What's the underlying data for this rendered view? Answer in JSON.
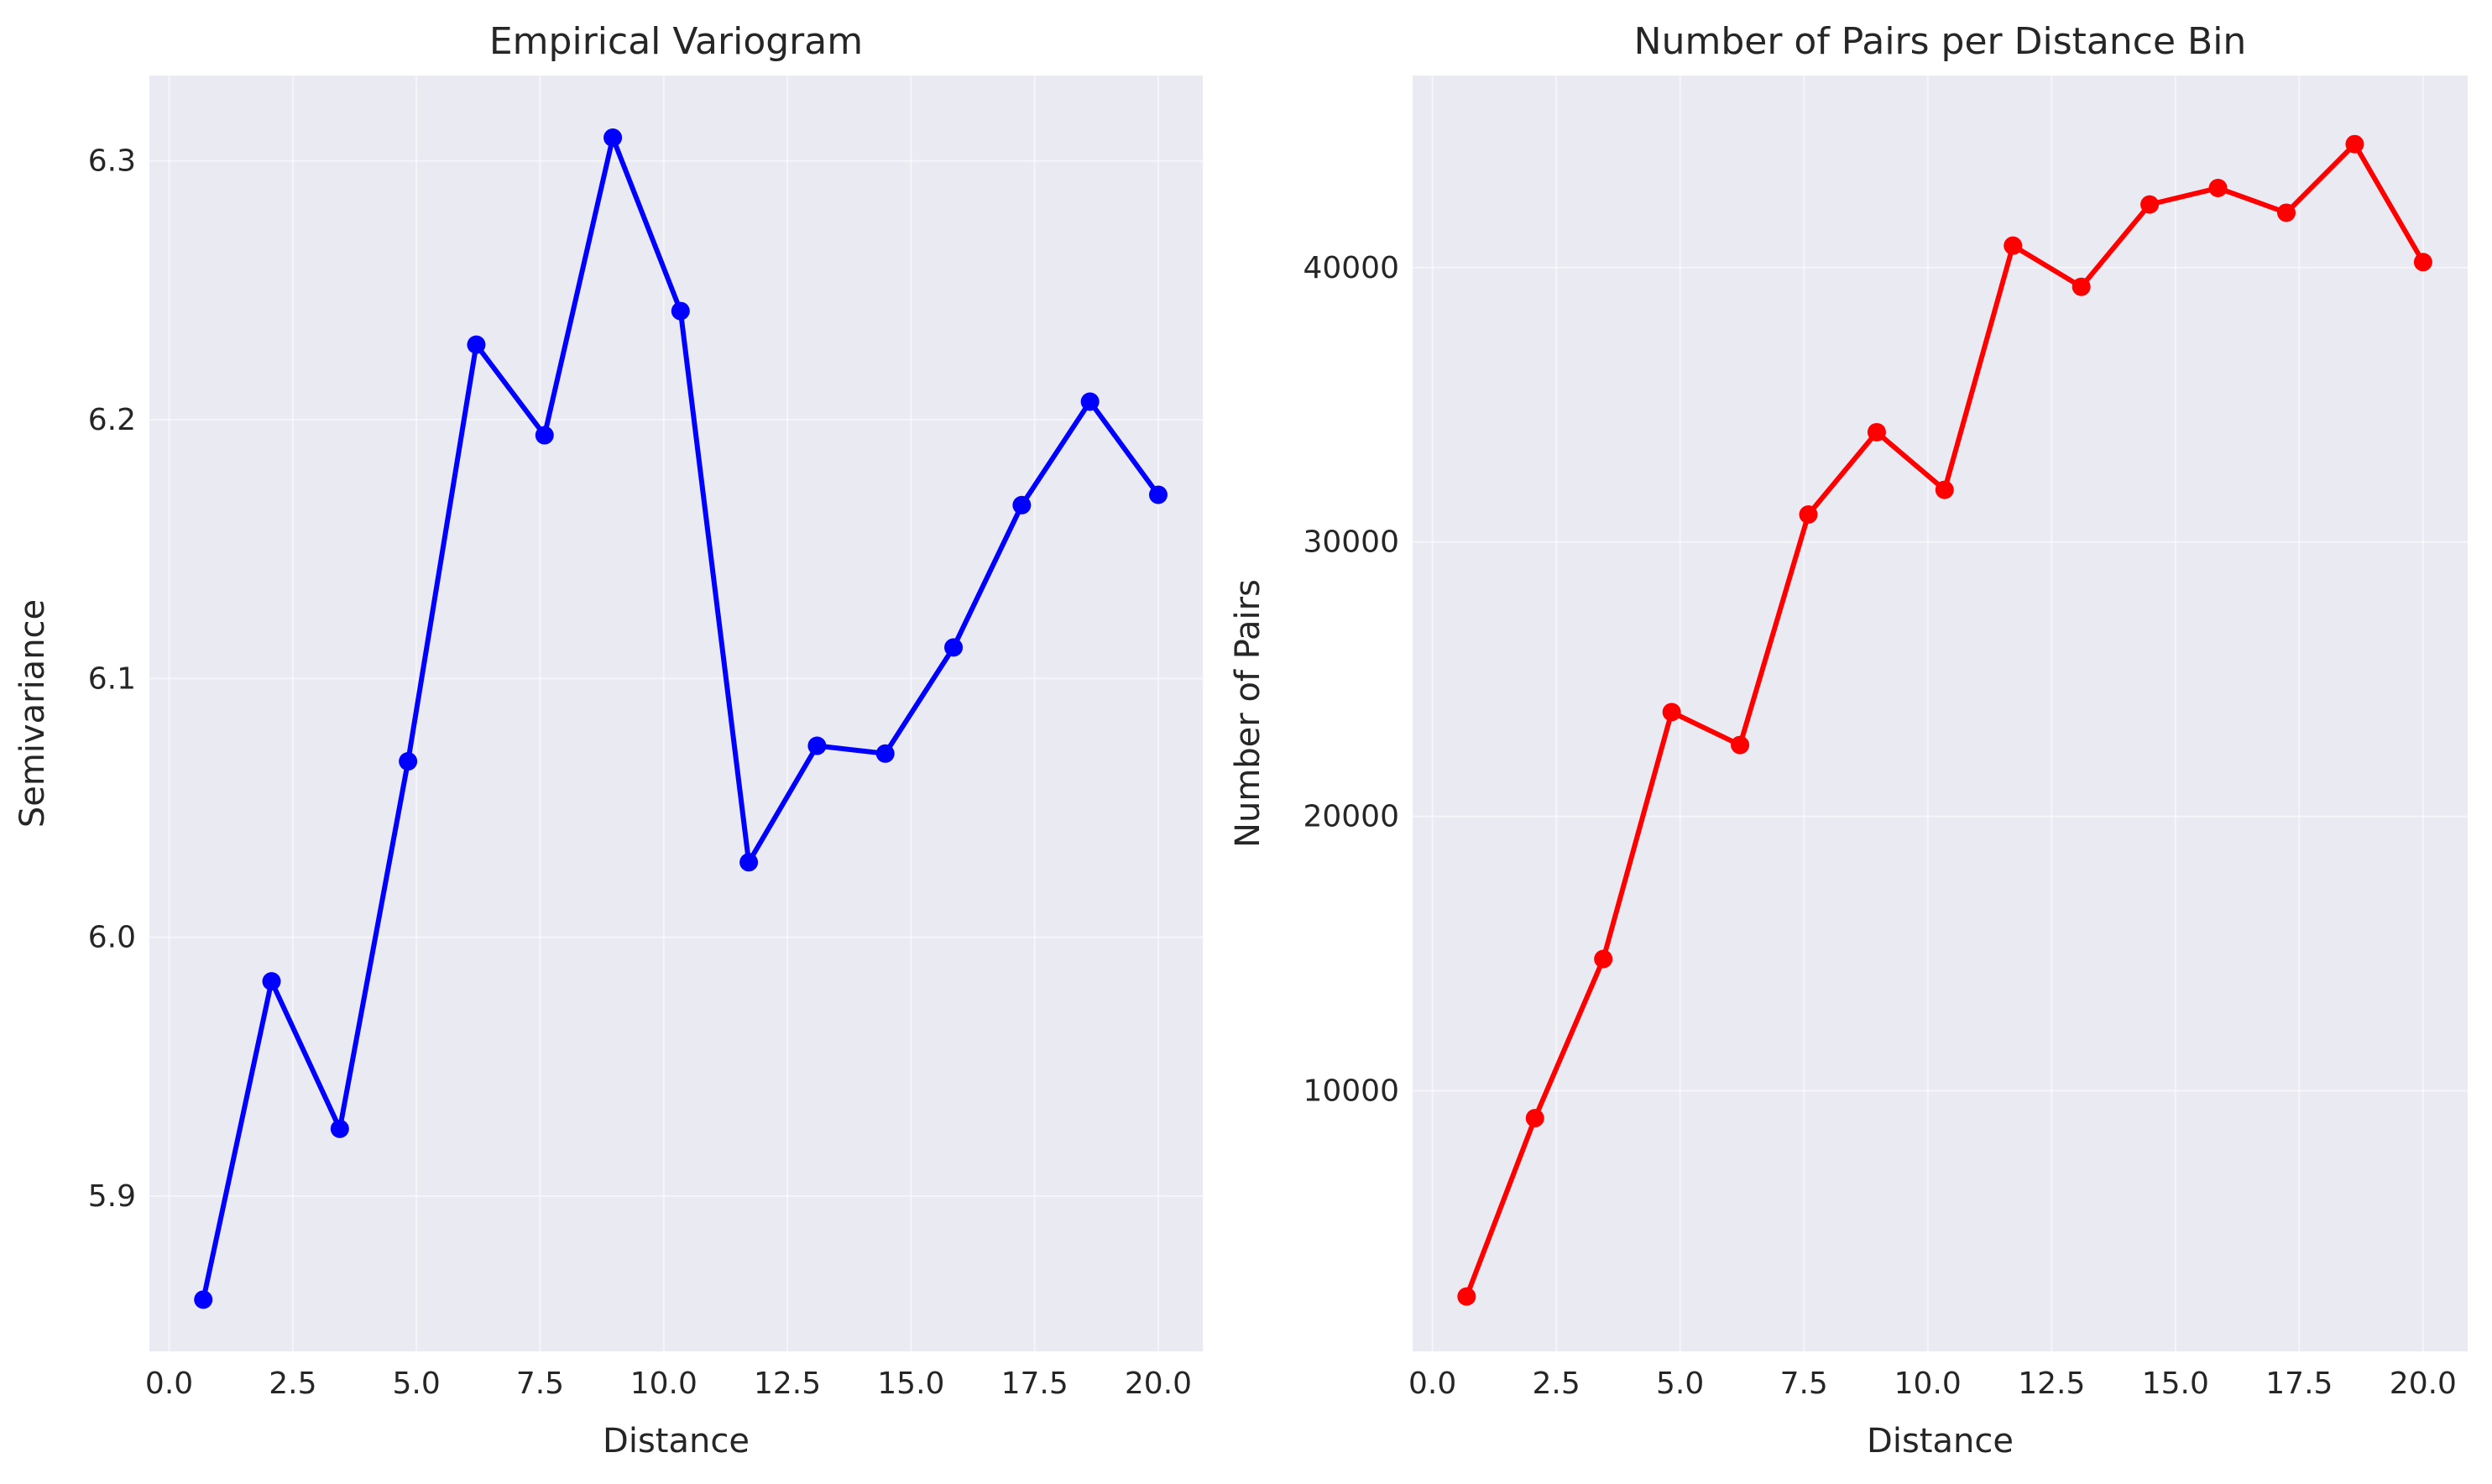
{
  "chart_data": [
    {
      "type": "line",
      "title": "Empirical Variogram",
      "xlabel": "Distance",
      "ylabel": "Semivariance",
      "xlim": [
        -0.4,
        20.9
      ],
      "ylim": [
        5.84,
        6.333
      ],
      "xticks": [
        0.0,
        2.5,
        5.0,
        7.5,
        10.0,
        12.5,
        15.0,
        17.5,
        20.0
      ],
      "xtick_labels": [
        "0.0",
        "2.5",
        "5.0",
        "7.5",
        "10.0",
        "12.5",
        "15.0",
        "17.5",
        "20.0"
      ],
      "yticks": [
        5.9,
        6.0,
        6.1,
        6.2,
        6.3
      ],
      "ytick_labels": [
        "5.9",
        "6.0",
        "6.1",
        "6.2",
        "6.3"
      ],
      "grid": true,
      "color": "#0000ff",
      "marker": "circle",
      "series": [
        {
          "x": [
            0.69,
            2.07,
            3.45,
            4.83,
            6.21,
            7.59,
            8.97,
            10.34,
            11.72,
            13.1,
            14.48,
            15.86,
            17.24,
            18.62,
            20.0
          ],
          "values": [
            5.86,
            5.983,
            5.926,
            6.068,
            6.229,
            6.194,
            6.309,
            6.242,
            6.029,
            6.074,
            6.071,
            6.112,
            6.167,
            6.207,
            6.171
          ]
        }
      ]
    },
    {
      "type": "line",
      "title": "Number of Pairs per Distance Bin",
      "xlabel": "Distance",
      "ylabel": "Number of Pairs",
      "xlim": [
        -0.4,
        20.9
      ],
      "ylim": [
        500,
        47000
      ],
      "xticks": [
        0.0,
        2.5,
        5.0,
        7.5,
        10.0,
        12.5,
        15.0,
        17.5,
        20.0
      ],
      "xtick_labels": [
        "0.0",
        "2.5",
        "5.0",
        "7.5",
        "10.0",
        "12.5",
        "15.0",
        "17.5",
        "20.0"
      ],
      "yticks": [
        10000,
        20000,
        30000,
        40000
      ],
      "ytick_labels": [
        "10000",
        "20000",
        "30000",
        "40000"
      ],
      "grid": true,
      "color": "#ff0000",
      "marker": "circle",
      "series": [
        {
          "x": [
            0.69,
            2.07,
            3.45,
            4.83,
            6.21,
            7.59,
            8.97,
            10.34,
            11.72,
            13.1,
            14.48,
            15.86,
            17.24,
            18.62,
            20.0
          ],
          "values": [
            2500,
            9000,
            14800,
            23800,
            22600,
            31000,
            34000,
            31900,
            40800,
            39300,
            42300,
            42900,
            42000,
            44500,
            40200
          ]
        }
      ]
    }
  ]
}
